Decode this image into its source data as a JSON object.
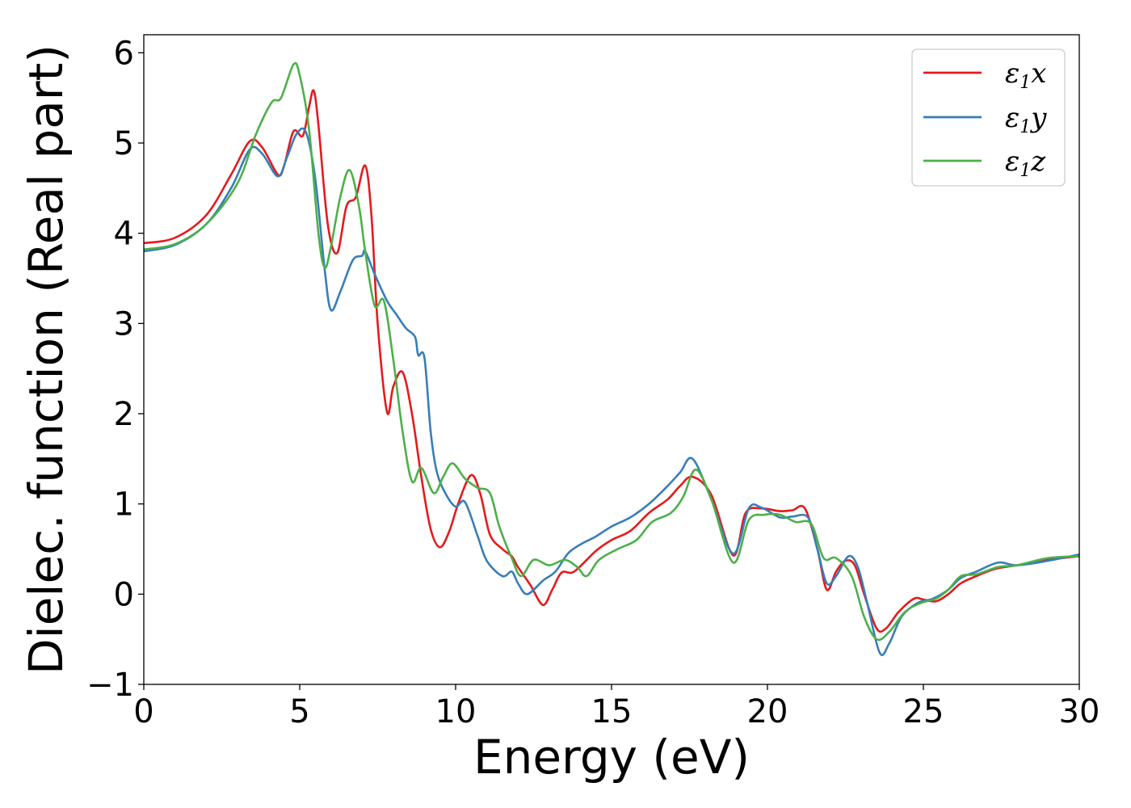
{
  "chart_data": {
    "type": "line",
    "xlabel": "Energy (eV)",
    "ylabel": "Dielec. function (Real part)",
    "xlim": [
      0,
      30
    ],
    "ylim": [
      -1,
      6.2
    ],
    "xticks": [
      "0",
      "5",
      "10",
      "15",
      "20",
      "25",
      "30"
    ],
    "yticks": [
      "−1",
      "0",
      "1",
      "2",
      "3",
      "4",
      "5",
      "6"
    ],
    "grid": false,
    "legend_position": "top-right",
    "series": [
      {
        "name": "ε1x",
        "name_main": "ε",
        "name_sub": "1",
        "name_suffix": "x",
        "color": "#e41a1c",
        "points": [
          [
            0,
            3.89
          ],
          [
            1,
            3.95
          ],
          [
            2,
            4.2
          ],
          [
            2.8,
            4.65
          ],
          [
            3.4,
            5.02
          ],
          [
            3.8,
            4.95
          ],
          [
            4.3,
            4.65
          ],
          [
            4.5,
            4.75
          ],
          [
            4.8,
            5.13
          ],
          [
            5.1,
            5.08
          ],
          [
            5.3,
            5.4
          ],
          [
            5.45,
            5.58
          ],
          [
            5.6,
            5.2
          ],
          [
            5.9,
            4.1
          ],
          [
            6.2,
            3.78
          ],
          [
            6.5,
            4.3
          ],
          [
            6.8,
            4.4
          ],
          [
            7.1,
            4.75
          ],
          [
            7.3,
            4.2
          ],
          [
            7.5,
            3.0
          ],
          [
            7.8,
            2.02
          ],
          [
            8.0,
            2.3
          ],
          [
            8.3,
            2.46
          ],
          [
            8.6,
            2.0
          ],
          [
            8.9,
            1.3
          ],
          [
            9.2,
            0.72
          ],
          [
            9.5,
            0.52
          ],
          [
            9.8,
            0.7
          ],
          [
            10.1,
            1.02
          ],
          [
            10.5,
            1.32
          ],
          [
            10.8,
            1.1
          ],
          [
            11.1,
            0.66
          ],
          [
            11.5,
            0.5
          ],
          [
            11.8,
            0.42
          ],
          [
            12.0,
            0.3
          ],
          [
            12.4,
            0.1
          ],
          [
            12.8,
            -0.12
          ],
          [
            13.1,
            0.05
          ],
          [
            13.4,
            0.24
          ],
          [
            13.8,
            0.25
          ],
          [
            14.5,
            0.48
          ],
          [
            15.0,
            0.6
          ],
          [
            15.6,
            0.7
          ],
          [
            16.2,
            0.9
          ],
          [
            16.8,
            1.05
          ],
          [
            17.2,
            1.2
          ],
          [
            17.6,
            1.3
          ],
          [
            18.2,
            1.1
          ],
          [
            18.9,
            0.43
          ],
          [
            19.3,
            0.9
          ],
          [
            19.8,
            0.95
          ],
          [
            20.4,
            0.92
          ],
          [
            20.8,
            0.93
          ],
          [
            21.2,
            0.95
          ],
          [
            21.6,
            0.5
          ],
          [
            21.9,
            0.05
          ],
          [
            22.2,
            0.25
          ],
          [
            22.5,
            0.37
          ],
          [
            22.8,
            0.32
          ],
          [
            23.1,
            0.0
          ],
          [
            23.5,
            -0.38
          ],
          [
            23.8,
            -0.38
          ],
          [
            24.2,
            -0.2
          ],
          [
            24.7,
            -0.05
          ],
          [
            25.0,
            -0.06
          ],
          [
            25.4,
            -0.08
          ],
          [
            25.8,
            0.0
          ],
          [
            26.2,
            0.12
          ],
          [
            26.7,
            0.2
          ],
          [
            27.3,
            0.28
          ],
          [
            28.0,
            0.32
          ],
          [
            29.0,
            0.38
          ],
          [
            30.0,
            0.42
          ]
        ]
      },
      {
        "name": "ε1y",
        "name_main": "ε",
        "name_sub": "1",
        "name_suffix": "y",
        "color": "#377eb8",
        "points": [
          [
            0,
            3.8
          ],
          [
            1,
            3.87
          ],
          [
            2,
            4.1
          ],
          [
            2.8,
            4.5
          ],
          [
            3.4,
            4.93
          ],
          [
            3.8,
            4.88
          ],
          [
            4.3,
            4.63
          ],
          [
            4.6,
            4.85
          ],
          [
            4.9,
            5.1
          ],
          [
            5.2,
            5.12
          ],
          [
            5.5,
            4.6
          ],
          [
            5.8,
            3.6
          ],
          [
            6.0,
            3.15
          ],
          [
            6.3,
            3.35
          ],
          [
            6.7,
            3.7
          ],
          [
            7.0,
            3.75
          ],
          [
            7.1,
            3.8
          ],
          [
            7.4,
            3.55
          ],
          [
            7.8,
            3.25
          ],
          [
            8.1,
            3.1
          ],
          [
            8.4,
            2.95
          ],
          [
            8.7,
            2.85
          ],
          [
            8.8,
            2.65
          ],
          [
            9.0,
            2.62
          ],
          [
            9.2,
            1.8
          ],
          [
            9.4,
            1.35
          ],
          [
            9.7,
            1.1
          ],
          [
            10.0,
            0.97
          ],
          [
            10.3,
            1.02
          ],
          [
            10.7,
            0.65
          ],
          [
            11.0,
            0.37
          ],
          [
            11.5,
            0.2
          ],
          [
            11.8,
            0.25
          ],
          [
            12.0,
            0.12
          ],
          [
            12.3,
            0.0
          ],
          [
            12.8,
            0.15
          ],
          [
            13.2,
            0.25
          ],
          [
            13.6,
            0.45
          ],
          [
            14.0,
            0.55
          ],
          [
            14.5,
            0.64
          ],
          [
            15.0,
            0.75
          ],
          [
            15.6,
            0.85
          ],
          [
            16.2,
            1.0
          ],
          [
            16.8,
            1.2
          ],
          [
            17.2,
            1.35
          ],
          [
            17.6,
            1.5
          ],
          [
            18.2,
            1.05
          ],
          [
            18.9,
            0.45
          ],
          [
            19.4,
            0.95
          ],
          [
            19.8,
            0.96
          ],
          [
            20.4,
            0.85
          ],
          [
            20.8,
            0.86
          ],
          [
            21.3,
            0.85
          ],
          [
            21.6,
            0.5
          ],
          [
            21.9,
            0.12
          ],
          [
            22.2,
            0.2
          ],
          [
            22.6,
            0.42
          ],
          [
            22.9,
            0.3
          ],
          [
            23.2,
            -0.1
          ],
          [
            23.6,
            -0.65
          ],
          [
            23.9,
            -0.55
          ],
          [
            24.3,
            -0.25
          ],
          [
            24.8,
            -0.1
          ],
          [
            25.3,
            -0.05
          ],
          [
            25.8,
            0.05
          ],
          [
            26.2,
            0.18
          ],
          [
            26.7,
            0.25
          ],
          [
            27.4,
            0.35
          ],
          [
            28.0,
            0.32
          ],
          [
            29.0,
            0.37
          ],
          [
            30.0,
            0.44
          ]
        ]
      },
      {
        "name": "ε1z",
        "name_main": "ε",
        "name_sub": "1",
        "name_suffix": "z",
        "color": "#4daf4a",
        "points": [
          [
            0,
            3.82
          ],
          [
            1,
            3.88
          ],
          [
            2,
            4.1
          ],
          [
            3.0,
            4.55
          ],
          [
            3.6,
            5.1
          ],
          [
            4.1,
            5.45
          ],
          [
            4.4,
            5.5
          ],
          [
            4.8,
            5.87
          ],
          [
            5.0,
            5.75
          ],
          [
            5.3,
            5.15
          ],
          [
            5.6,
            4.0
          ],
          [
            5.8,
            3.62
          ],
          [
            6.0,
            3.85
          ],
          [
            6.3,
            4.4
          ],
          [
            6.6,
            4.7
          ],
          [
            6.9,
            4.3
          ],
          [
            7.1,
            3.8
          ],
          [
            7.4,
            3.2
          ],
          [
            7.7,
            3.25
          ],
          [
            8.0,
            2.6
          ],
          [
            8.3,
            1.8
          ],
          [
            8.6,
            1.25
          ],
          [
            8.9,
            1.4
          ],
          [
            9.3,
            1.12
          ],
          [
            9.6,
            1.3
          ],
          [
            9.9,
            1.45
          ],
          [
            10.3,
            1.28
          ],
          [
            10.7,
            1.18
          ],
          [
            11.1,
            1.12
          ],
          [
            11.4,
            0.75
          ],
          [
            11.8,
            0.4
          ],
          [
            12.1,
            0.2
          ],
          [
            12.5,
            0.38
          ],
          [
            13.0,
            0.32
          ],
          [
            13.5,
            0.38
          ],
          [
            13.9,
            0.3
          ],
          [
            14.2,
            0.2
          ],
          [
            14.6,
            0.38
          ],
          [
            15.2,
            0.5
          ],
          [
            15.8,
            0.6
          ],
          [
            16.3,
            0.8
          ],
          [
            16.9,
            0.9
          ],
          [
            17.3,
            1.08
          ],
          [
            17.7,
            1.38
          ],
          [
            18.2,
            1.05
          ],
          [
            18.9,
            0.35
          ],
          [
            19.4,
            0.82
          ],
          [
            19.9,
            0.88
          ],
          [
            20.4,
            0.88
          ],
          [
            20.9,
            0.8
          ],
          [
            21.4,
            0.78
          ],
          [
            21.8,
            0.4
          ],
          [
            22.2,
            0.4
          ],
          [
            22.7,
            0.2
          ],
          [
            23.1,
            -0.25
          ],
          [
            23.5,
            -0.5
          ],
          [
            23.9,
            -0.42
          ],
          [
            24.4,
            -0.2
          ],
          [
            24.9,
            -0.1
          ],
          [
            25.4,
            -0.05
          ],
          [
            25.8,
            0.05
          ],
          [
            26.2,
            0.2
          ],
          [
            26.7,
            0.22
          ],
          [
            27.4,
            0.3
          ],
          [
            28.0,
            0.32
          ],
          [
            29.0,
            0.4
          ],
          [
            30.0,
            0.42
          ]
        ]
      }
    ]
  }
}
